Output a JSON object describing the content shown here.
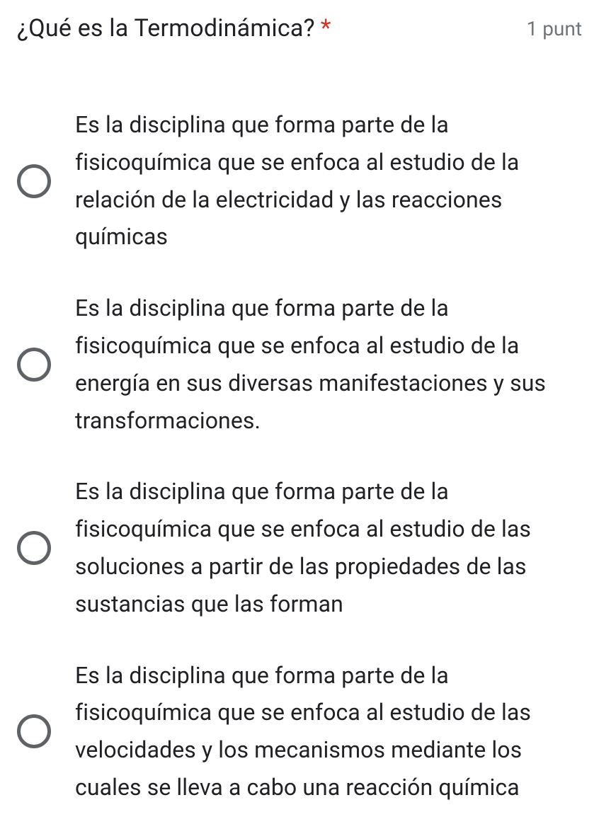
{
  "question": {
    "title": "¿Qué es la Termodinámica?",
    "required_marker": "*",
    "points_label": "1 punt",
    "options": [
      {
        "text": "Es la disciplina que forma parte de la fisicoquímica que se enfoca al estudio de la relación de la electricidad y las reacciones químicas"
      },
      {
        "text": "Es la disciplina que forma parte de la fisicoquímica que se enfoca al estudio de la energía en sus diversas manifestaciones y sus transformaciones."
      },
      {
        "text": "Es la disciplina que forma parte de la fisicoquímica que se enfoca al estudio de las soluciones a partir de las propiedades de las sustancias que las forman"
      },
      {
        "text": "Es la disciplina que forma parte de la fisicoquímica que se enfoca al estudio de las velocidades y los mecanismos mediante los cuales se lleva a cabo una reacción química"
      }
    ]
  },
  "colors": {
    "text": "#202124",
    "required": "#d93025",
    "muted": "#70757a",
    "radio_border": "#5f6368",
    "background": "#ffffff"
  }
}
